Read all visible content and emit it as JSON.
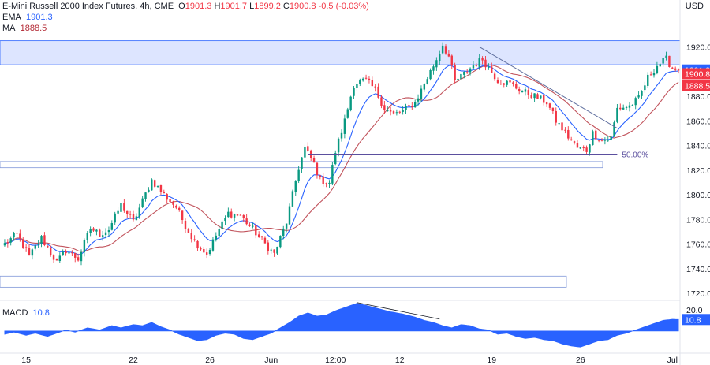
{
  "header": {
    "title": "E-Mini Russell 2000 Index Futures, 4h, CME",
    "ohlc": [
      {
        "k": "O",
        "v": "1901.3"
      },
      {
        "k": "H",
        "v": "1901.7"
      },
      {
        "k": "L",
        "v": "1899.2"
      },
      {
        "k": "C",
        "v": "1900.8"
      }
    ],
    "change": "-0.5 (-0.03%)",
    "ema_label": "EMA",
    "ema_value": "1901.3",
    "ma_label": "MA",
    "ma_value": "1888.5",
    "currency": "USD"
  },
  "macd": {
    "label": "MACD",
    "value": "10.8",
    "axis_top": "20.0"
  },
  "colors": {
    "up": "#089981",
    "down": "#f23645",
    "ema": "#2962ff",
    "ma": "#b22833",
    "zone_fill": "#d1dcff",
    "zone_stroke": "#2962ff",
    "macd": "#2962ff",
    "fib_text": "#5b4f9e",
    "axis_text": "#131722"
  },
  "chart_data": {
    "type": "candlestick",
    "price_axis": {
      "range": [
        1715,
        1935
      ],
      "ticks": [
        1920,
        1900,
        1880,
        1860,
        1840,
        1820,
        1800,
        1780,
        1760,
        1740,
        1720
      ],
      "tick_labels": [
        "1920.0",
        "1900.0",
        "1880.0",
        "1860.0",
        "1840.0",
        "1820.0",
        "1800.0",
        "1780.0",
        "1760.0",
        "1740.0",
        "1720.0"
      ],
      "price_labels": [
        {
          "text": "1901.3",
          "value": 1901.3,
          "color": "#2962ff"
        },
        {
          "text": "1900.8",
          "value": 1900.8,
          "color": "#f23645"
        },
        {
          "text": "1888.5",
          "value": 1888.5,
          "color": "#f23645"
        }
      ]
    },
    "x_axis": {
      "labels": [
        {
          "text": "15",
          "bar": 7
        },
        {
          "text": "22",
          "bar": 42
        },
        {
          "text": "26",
          "bar": 67
        },
        {
          "text": "Jun",
          "bar": 87
        },
        {
          "text": "12:00",
          "bar": 108
        },
        {
          "text": "12",
          "bar": 129
        },
        {
          "text": "19",
          "bar": 159
        },
        {
          "text": "26",
          "bar": 188
        },
        {
          "text": "Jul",
          "bar": 218
        }
      ]
    },
    "bar_count": 221,
    "series": [
      {
        "name": "EMA",
        "value": 1901.3
      },
      {
        "name": "MA",
        "value": 1888.5
      }
    ],
    "price_path": [
      [
        0,
        1760
      ],
      [
        4,
        1768
      ],
      [
        8,
        1750
      ],
      [
        12,
        1765
      ],
      [
        17,
        1745
      ],
      [
        20,
        1755
      ],
      [
        24,
        1748
      ],
      [
        28,
        1773
      ],
      [
        31,
        1768
      ],
      [
        34,
        1772
      ],
      [
        38,
        1792
      ],
      [
        42,
        1778
      ],
      [
        45,
        1795
      ],
      [
        48,
        1812
      ],
      [
        52,
        1800
      ],
      [
        56,
        1790
      ],
      [
        59,
        1775
      ],
      [
        62,
        1762
      ],
      [
        66,
        1752
      ],
      [
        70,
        1772
      ],
      [
        73,
        1785
      ],
      [
        77,
        1783
      ],
      [
        81,
        1772
      ],
      [
        85,
        1760
      ],
      [
        88,
        1752
      ],
      [
        92,
        1778
      ],
      [
        94,
        1800
      ],
      [
        96,
        1822
      ],
      [
        98,
        1838
      ],
      [
        101,
        1825
      ],
      [
        103,
        1812
      ],
      [
        106,
        1810
      ],
      [
        108,
        1835
      ],
      [
        111,
        1860
      ],
      [
        114,
        1890
      ],
      [
        118,
        1893
      ],
      [
        121,
        1885
      ],
      [
        124,
        1870
      ],
      [
        127,
        1865
      ],
      [
        130,
        1868
      ],
      [
        134,
        1875
      ],
      [
        138,
        1895
      ],
      [
        141,
        1910
      ],
      [
        143,
        1922
      ],
      [
        145,
        1912
      ],
      [
        147,
        1892
      ],
      [
        150,
        1898
      ],
      [
        153,
        1905
      ],
      [
        156,
        1910
      ],
      [
        158,
        1903
      ],
      [
        161,
        1893
      ],
      [
        165,
        1890
      ],
      [
        169,
        1884
      ],
      [
        173,
        1880
      ],
      [
        177,
        1875
      ],
      [
        180,
        1860
      ],
      [
        184,
        1847
      ],
      [
        187,
        1838
      ],
      [
        190,
        1836
      ],
      [
        192,
        1850
      ],
      [
        195,
        1844
      ],
      [
        198,
        1846
      ],
      [
        200,
        1870
      ],
      [
        204,
        1872
      ],
      [
        207,
        1878
      ],
      [
        210,
        1895
      ],
      [
        213,
        1905
      ],
      [
        216,
        1910
      ],
      [
        218,
        1903
      ],
      [
        220,
        1901
      ]
    ],
    "annotations": {
      "resistance_zone": [
        1905.5,
        1925
      ],
      "support_zone": [
        1822,
        1827
      ],
      "lower_zone": [
        1725,
        1734
      ],
      "fib_level": {
        "value": 1833,
        "label": "50.00%",
        "start_bar": 99,
        "end_bar": 200
      },
      "trendline": {
        "from": [
          155,
          1920
        ],
        "to": [
          200,
          1854
        ]
      },
      "macd_divergence": {
        "from_bar": 115,
        "to_bar": 142
      }
    },
    "macd": {
      "range": [
        -20,
        28
      ],
      "path": [
        [
          0,
          -3
        ],
        [
          3,
          -1
        ],
        [
          7,
          -4
        ],
        [
          10,
          -2
        ],
        [
          14,
          -5
        ],
        [
          17,
          -2
        ],
        [
          20,
          1
        ],
        [
          23,
          -1
        ],
        [
          27,
          3
        ],
        [
          31,
          1
        ],
        [
          35,
          5
        ],
        [
          38,
          3
        ],
        [
          42,
          6
        ],
        [
          45,
          5
        ],
        [
          48,
          8
        ],
        [
          51,
          4
        ],
        [
          54,
          1
        ],
        [
          57,
          -3
        ],
        [
          60,
          -6
        ],
        [
          63,
          -9
        ],
        [
          66,
          -8
        ],
        [
          69,
          -4
        ],
        [
          72,
          -2
        ],
        [
          75,
          -3
        ],
        [
          78,
          -7
        ],
        [
          81,
          -8
        ],
        [
          84,
          -5
        ],
        [
          87,
          -2
        ],
        [
          90,
          3
        ],
        [
          93,
          8
        ],
        [
          96,
          14
        ],
        [
          99,
          17
        ],
        [
          102,
          14
        ],
        [
          105,
          15
        ],
        [
          108,
          19
        ],
        [
          112,
          23
        ],
        [
          115,
          26
        ],
        [
          118,
          24
        ],
        [
          122,
          21
        ],
        [
          126,
          18
        ],
        [
          130,
          16
        ],
        [
          134,
          13
        ],
        [
          137,
          10
        ],
        [
          140,
          8
        ],
        [
          143,
          5
        ],
        [
          146,
          3
        ],
        [
          149,
          6
        ],
        [
          152,
          5
        ],
        [
          155,
          2
        ],
        [
          158,
          1
        ],
        [
          161,
          -3
        ],
        [
          164,
          -2
        ],
        [
          167,
          -5
        ],
        [
          170,
          -7
        ],
        [
          173,
          -6
        ],
        [
          176,
          -8
        ],
        [
          179,
          -9
        ],
        [
          182,
          -12
        ],
        [
          185,
          -14
        ],
        [
          188,
          -15
        ],
        [
          191,
          -12
        ],
        [
          194,
          -9
        ],
        [
          197,
          -8
        ],
        [
          200,
          -4
        ],
        [
          203,
          -2
        ],
        [
          206,
          1
        ],
        [
          209,
          4
        ],
        [
          212,
          7
        ],
        [
          215,
          10
        ],
        [
          218,
          11
        ],
        [
          220,
          10.8
        ]
      ]
    }
  }
}
